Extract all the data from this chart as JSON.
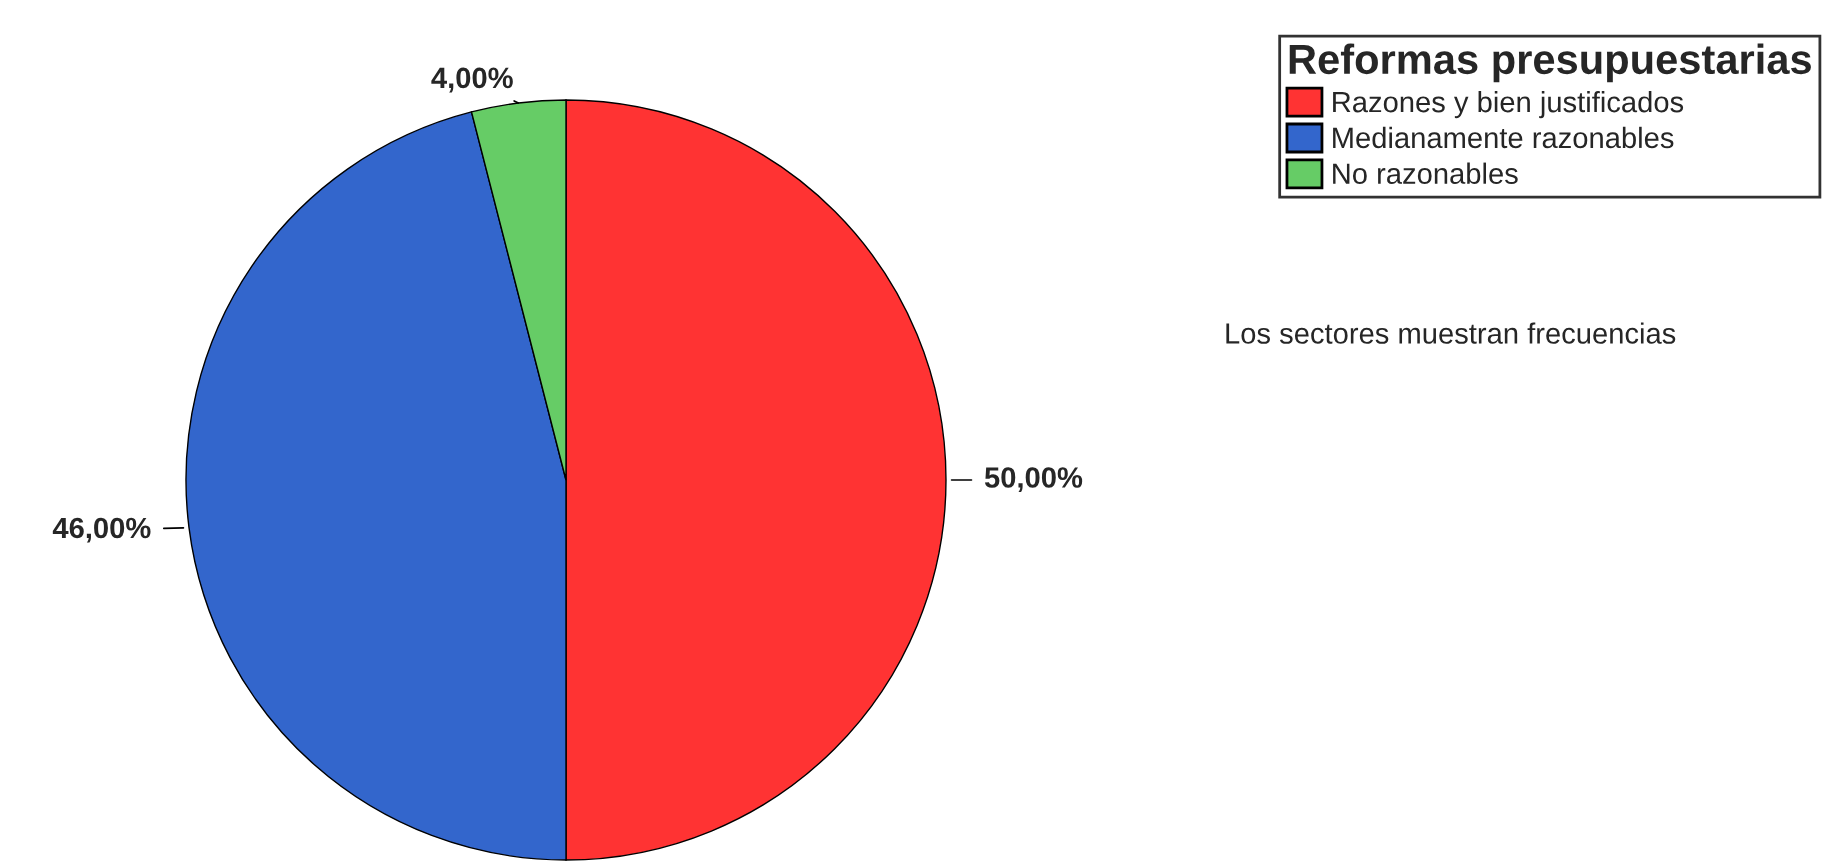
{
  "chart_data": {
    "type": "pie",
    "legend_title": "Reformas presupuestarias",
    "categories": [
      "Razones y bien justificados",
      "Medianamente razonables",
      "No razonables"
    ],
    "values": [
      50,
      46,
      4
    ],
    "colors": [
      "#ff3333",
      "#3366cc",
      "#66cc66"
    ],
    "value_labels": [
      "50,00%",
      "46,00%",
      "4,00%"
    ],
    "legend": "top right",
    "annotations": [
      "Los sectores muestran frecuencias"
    ]
  }
}
